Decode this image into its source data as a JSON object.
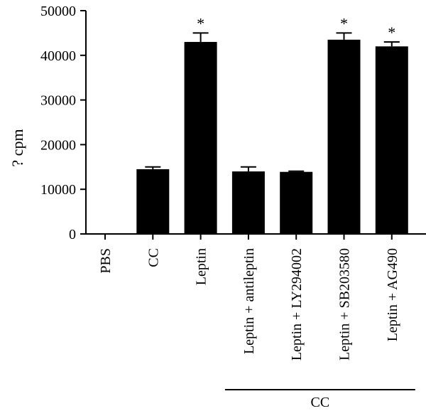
{
  "chart_data": {
    "type": "bar",
    "ylabel": "? cpm",
    "ylim": [
      0,
      50000
    ],
    "yticks": [
      0,
      10000,
      20000,
      30000,
      40000,
      50000
    ],
    "categories": [
      "PBS",
      "CC",
      "Leptin",
      "Leptin + antileptin",
      "Leptin + LY294002",
      "Leptin + SB203580",
      "Leptin + AG490"
    ],
    "values": [
      0,
      14500,
      43000,
      14000,
      13900,
      43500,
      42000
    ],
    "error": [
      0,
      500,
      2000,
      1000,
      150,
      1500,
      1000
    ],
    "significance": [
      "",
      "",
      "*",
      "",
      "",
      "*",
      "*"
    ],
    "group_label": "CC",
    "group_categories": [
      "Leptin + antileptin",
      "Leptin + LY294002",
      "Leptin + SB203580",
      "Leptin + AG490"
    ],
    "bar_color": "#000000"
  }
}
